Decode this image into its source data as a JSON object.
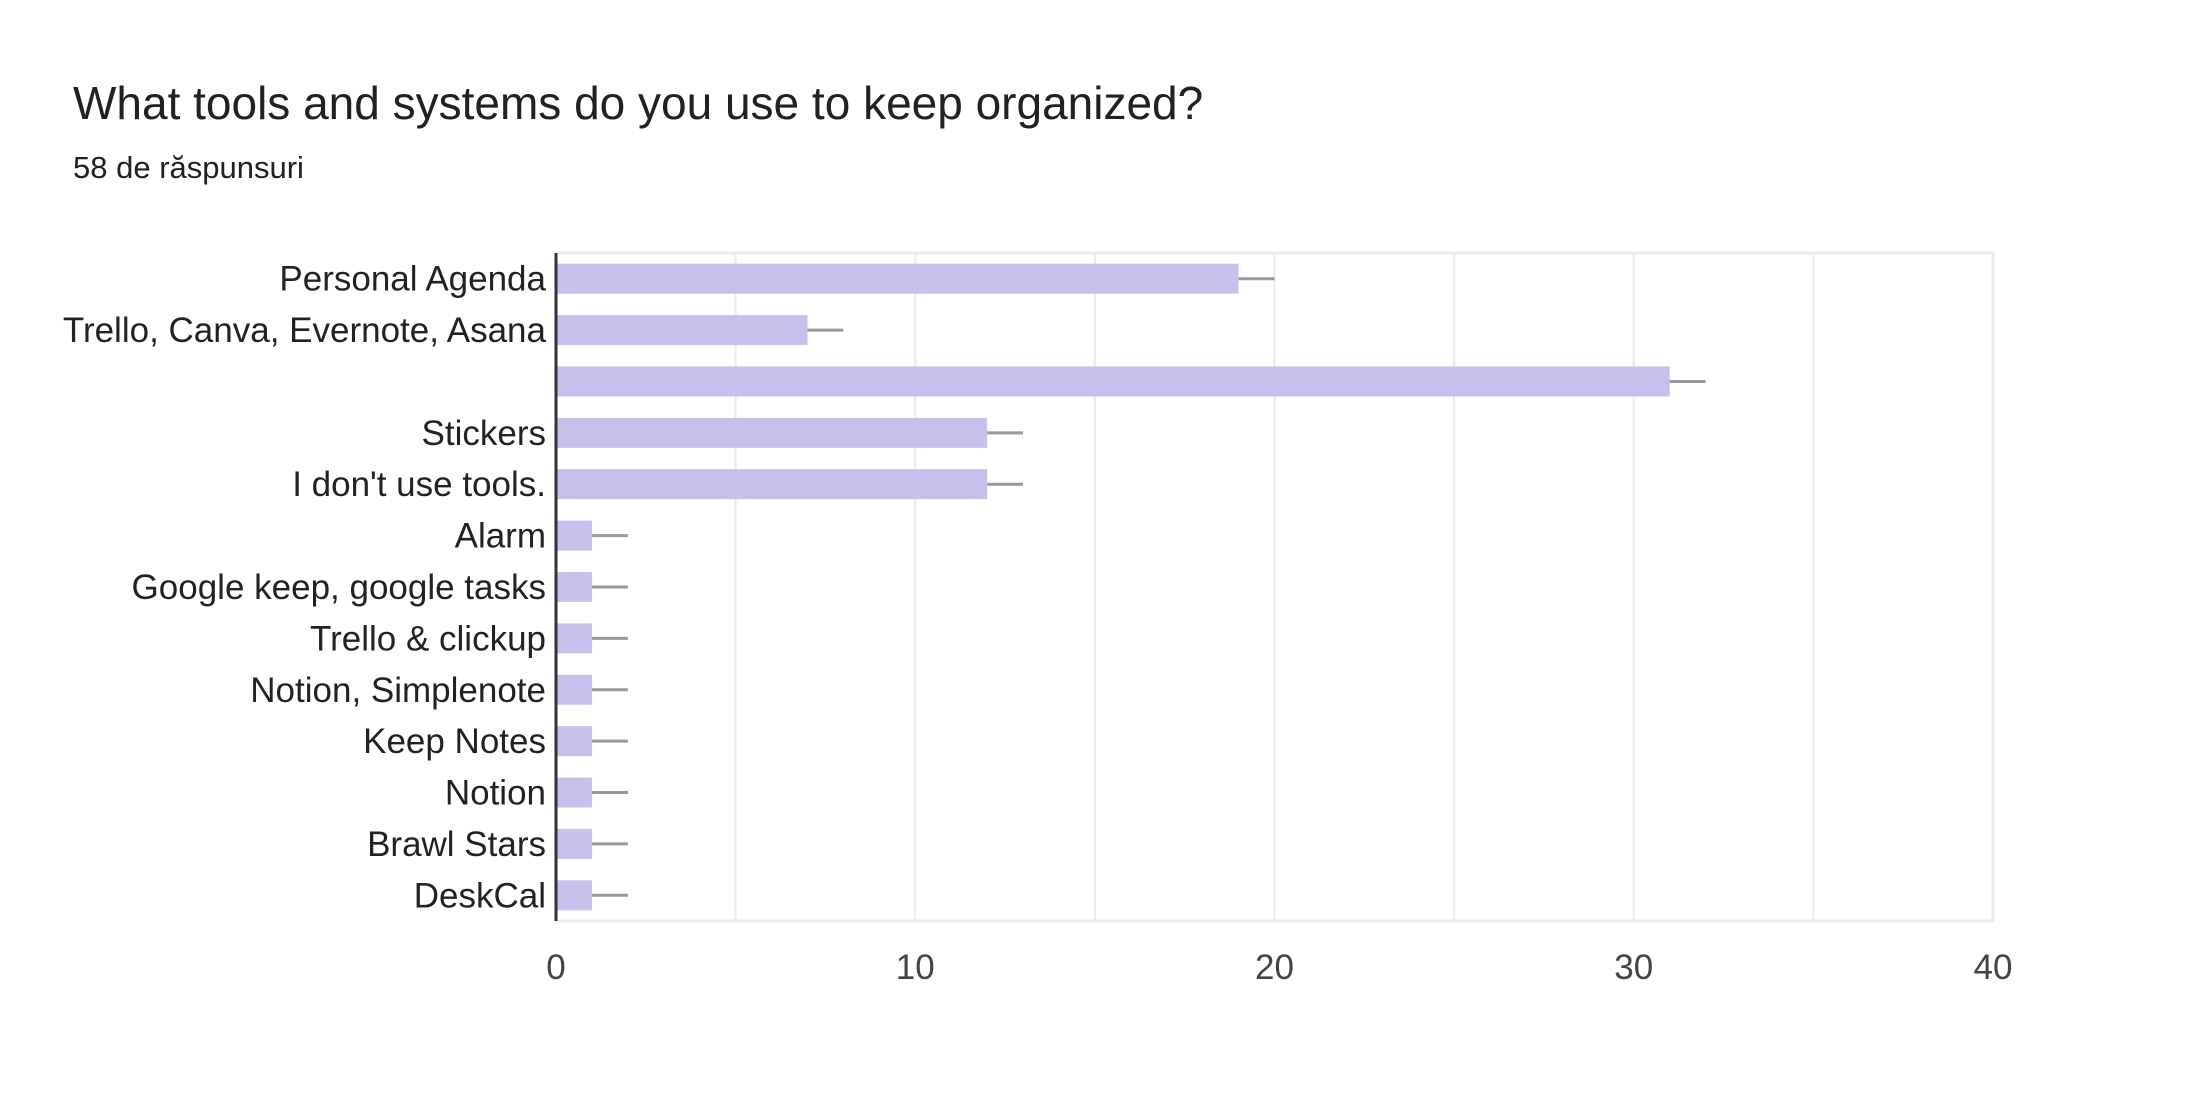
{
  "title": "What tools and systems do you use to keep organized?",
  "subtitle": "58 de răspunsuri",
  "chart_data": {
    "type": "bar",
    "orientation": "horizontal",
    "categories": [
      "Personal Agenda",
      "Trello, Canva, Evernote, Asana",
      "",
      "Stickers",
      "I don't use tools.",
      "Alarm",
      "Google keep, google tasks",
      "Trello & clickup",
      "Notion, Simplenote",
      "Keep Notes",
      "Notion",
      "Brawl Stars",
      "DeskCal"
    ],
    "values": [
      19,
      7,
      31,
      12,
      12,
      1,
      1,
      1,
      1,
      1,
      1,
      1,
      1
    ],
    "xlim": [
      0,
      40
    ],
    "xticks": [
      "0",
      "10",
      "20",
      "30",
      "40"
    ],
    "grid": true,
    "bar_color": "#c9bfec",
    "error_bar_color": "#999999"
  }
}
